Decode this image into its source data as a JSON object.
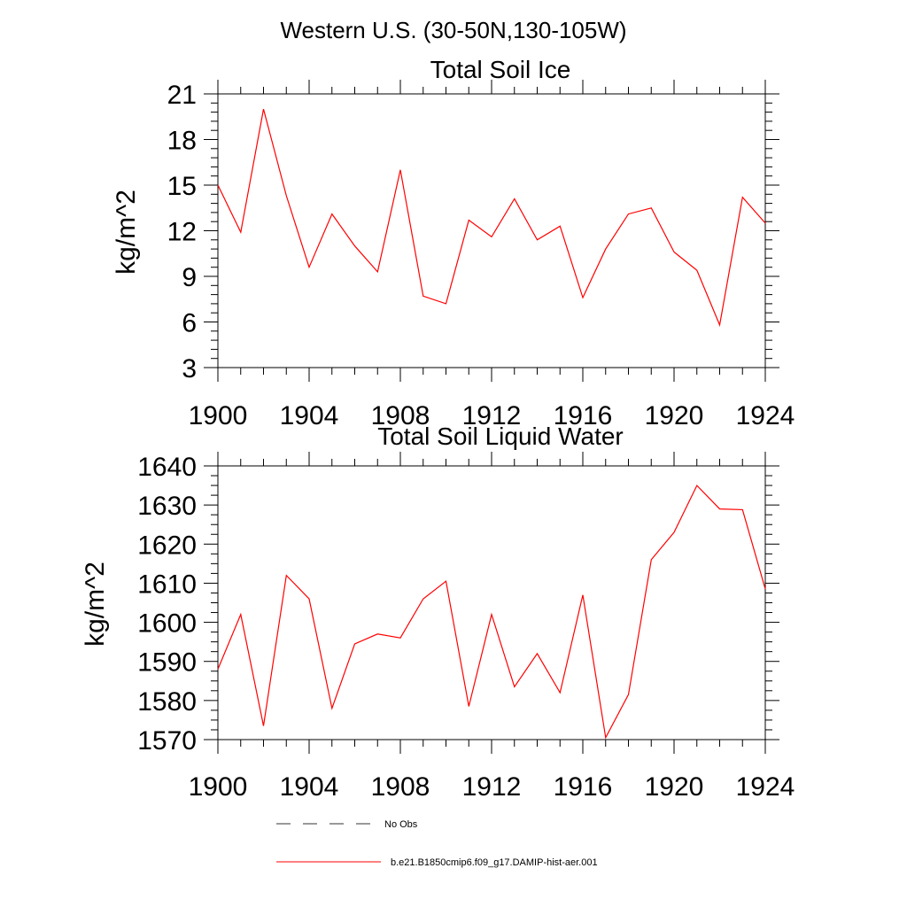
{
  "figure": {
    "title": "Western U.S. (30-50N,130-105W)"
  },
  "chart_data": [
    {
      "type": "line",
      "title": "Total Soil Ice",
      "ylabel": "kg/m^2",
      "xlabel": "",
      "xlim": [
        1900,
        1924
      ],
      "ylim": [
        3,
        21
      ],
      "xticks": [
        1900,
        1904,
        1908,
        1912,
        1916,
        1920,
        1924
      ],
      "yticks": [
        3,
        6,
        9,
        12,
        15,
        18,
        21
      ],
      "grid": false,
      "x": [
        1900,
        1901,
        1902,
        1903,
        1904,
        1905,
        1906,
        1907,
        1908,
        1909,
        1910,
        1911,
        1912,
        1913,
        1914,
        1915,
        1916,
        1917,
        1918,
        1919,
        1920,
        1921,
        1922,
        1923,
        1924
      ],
      "series": [
        {
          "name": "b.e21.B1850cmip6.f09_g17.DAMIP-hist-aer.001",
          "color": "#ff0000",
          "values": [
            15.0,
            11.9,
            20.0,
            14.3,
            9.6,
            13.1,
            11.0,
            9.3,
            16.0,
            7.7,
            7.2,
            12.7,
            11.6,
            14.1,
            11.4,
            12.3,
            7.6,
            10.8,
            13.1,
            13.5,
            10.6,
            9.4,
            5.8,
            14.2,
            12.5
          ]
        }
      ]
    },
    {
      "type": "line",
      "title": "Total Soil Liquid Water",
      "ylabel": "kg/m^2",
      "xlabel": "",
      "xlim": [
        1900,
        1924
      ],
      "ylim": [
        1570,
        1640
      ],
      "xticks": [
        1900,
        1904,
        1908,
        1912,
        1916,
        1920,
        1924
      ],
      "yticks": [
        1570,
        1580,
        1590,
        1600,
        1610,
        1620,
        1630,
        1640
      ],
      "grid": false,
      "x": [
        1900,
        1901,
        1902,
        1903,
        1904,
        1905,
        1906,
        1907,
        1908,
        1909,
        1910,
        1911,
        1912,
        1913,
        1914,
        1915,
        1916,
        1917,
        1918,
        1919,
        1920,
        1921,
        1922,
        1923,
        1924
      ],
      "series": [
        {
          "name": "b.e21.B1850cmip6.f09_g17.DAMIP-hist-aer.001",
          "color": "#ff0000",
          "values": [
            1588,
            1602,
            1573.5,
            1612,
            1606,
            1578,
            1594.5,
            1597,
            1596,
            1606,
            1610.5,
            1578.5,
            1602,
            1583.5,
            1592,
            1582,
            1607,
            1570.5,
            1581.5,
            1616,
            1623,
            1635,
            1629,
            1628.8,
            1608.5
          ]
        }
      ]
    }
  ],
  "legend": {
    "placement": "bottom",
    "entries": [
      {
        "label": "No Obs",
        "style": "dashed",
        "color": "#333333"
      },
      {
        "label": "b.e21.B1850cmip6.f09_g17.DAMIP-hist-aer.001",
        "style": "solid",
        "color": "#ff0000"
      }
    ]
  }
}
